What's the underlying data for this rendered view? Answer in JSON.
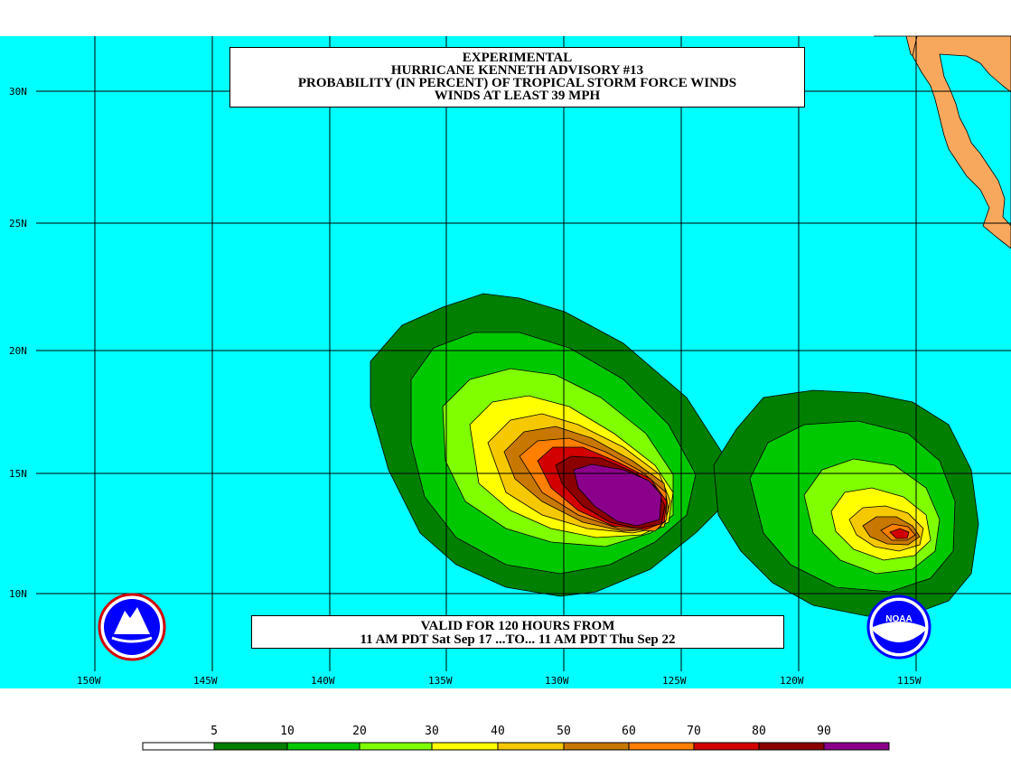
{
  "title": {
    "line1": "EXPERIMENTAL",
    "line2": "HURRICANE KENNETH ADVISORY #13",
    "line3": "PROBABILITY (IN PERCENT) OF TROPICAL STORM FORCE WINDS",
    "line4": "WINDS AT LEAST 39 MPH"
  },
  "valid": {
    "line1": "VALID FOR 120 HOURS FROM",
    "line2": "11 AM PDT Sat Sep 17 ...TO... 11 AM PDT Thu Sep 22"
  },
  "lat_labels": [
    "30N",
    "25N",
    "20N",
    "15N",
    "10N"
  ],
  "lon_labels": [
    "150W",
    "145W",
    "140W",
    "135W",
    "130W",
    "125W",
    "120W",
    "115W"
  ],
  "legend": {
    "labels": [
      "5",
      "10",
      "20",
      "30",
      "40",
      "50",
      "60",
      "70",
      "80",
      "90"
    ],
    "colors": [
      "#ffffff",
      "#007f00",
      "#00c800",
      "#7fff00",
      "#ffff00",
      "#f5c800",
      "#c87800",
      "#ff7f00",
      "#d20000",
      "#8b0000",
      "#8b008b"
    ]
  },
  "colors": {
    "ocean": "#00ffff",
    "land": "#f8a85c",
    "p5": "#007f00",
    "p10": "#00c800",
    "p20": "#7fff00",
    "p30": "#ffff00",
    "p40": "#f5c800",
    "p50": "#c87800",
    "p60": "#ff7f00",
    "p70": "#d20000",
    "p80": "#8b0000",
    "p90": "#8b008b"
  },
  "logos": {
    "left": "nws-logo-icon",
    "right": "noaa-logo-icon"
  }
}
